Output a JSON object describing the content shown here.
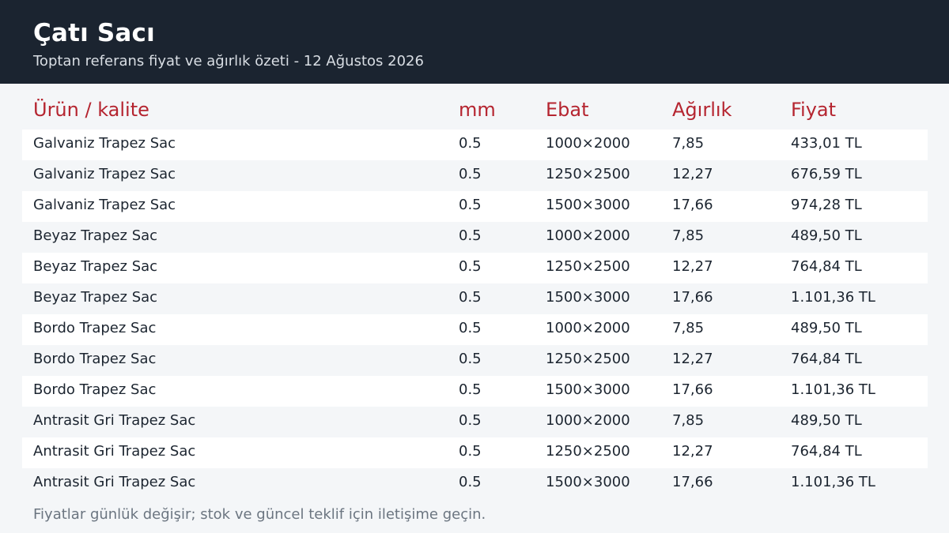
{
  "header": {
    "title": "Çatı Sacı",
    "subtitle": "Toptan referans fiyat ve ağırlık özeti - 12 Ağustos 2026"
  },
  "table": {
    "columns": [
      "Ürün / kalite",
      "mm",
      "Ebat",
      "Ağırlık",
      "Fiyat"
    ],
    "rows": [
      [
        "Galvaniz Trapez Sac",
        "0.5",
        "1000×2000",
        "7,85",
        "433,01 TL"
      ],
      [
        "Galvaniz Trapez Sac",
        "0.5",
        "1250×2500",
        "12,27",
        "676,59 TL"
      ],
      [
        "Galvaniz Trapez Sac",
        "0.5",
        "1500×3000",
        "17,66",
        "974,28 TL"
      ],
      [
        "Beyaz Trapez Sac",
        "0.5",
        "1000×2000",
        "7,85",
        "489,50 TL"
      ],
      [
        "Beyaz Trapez Sac",
        "0.5",
        "1250×2500",
        "12,27",
        "764,84 TL"
      ],
      [
        "Beyaz Trapez Sac",
        "0.5",
        "1500×3000",
        "17,66",
        "1.101,36 TL"
      ],
      [
        "Bordo Trapez Sac",
        "0.5",
        "1000×2000",
        "7,85",
        "489,50 TL"
      ],
      [
        "Bordo Trapez Sac",
        "0.5",
        "1250×2500",
        "12,27",
        "764,84 TL"
      ],
      [
        "Bordo Trapez Sac",
        "0.5",
        "1500×3000",
        "17,66",
        "1.101,36 TL"
      ],
      [
        "Antrasit Gri Trapez Sac",
        "0.5",
        "1000×2000",
        "7,85",
        "489,50 TL"
      ],
      [
        "Antrasit Gri Trapez Sac",
        "0.5",
        "1250×2500",
        "12,27",
        "764,84 TL"
      ],
      [
        "Antrasit Gri Trapez Sac",
        "0.5",
        "1500×3000",
        "17,66",
        "1.101,36 TL"
      ]
    ]
  },
  "footer": {
    "note": "Fiyatlar günlük değişir; stok ve güncel teklif için iletişime geçin."
  },
  "colors": {
    "header_bg": "#1b2430",
    "header_accent": "#b52530",
    "page_bg": "#f4f6f8"
  }
}
